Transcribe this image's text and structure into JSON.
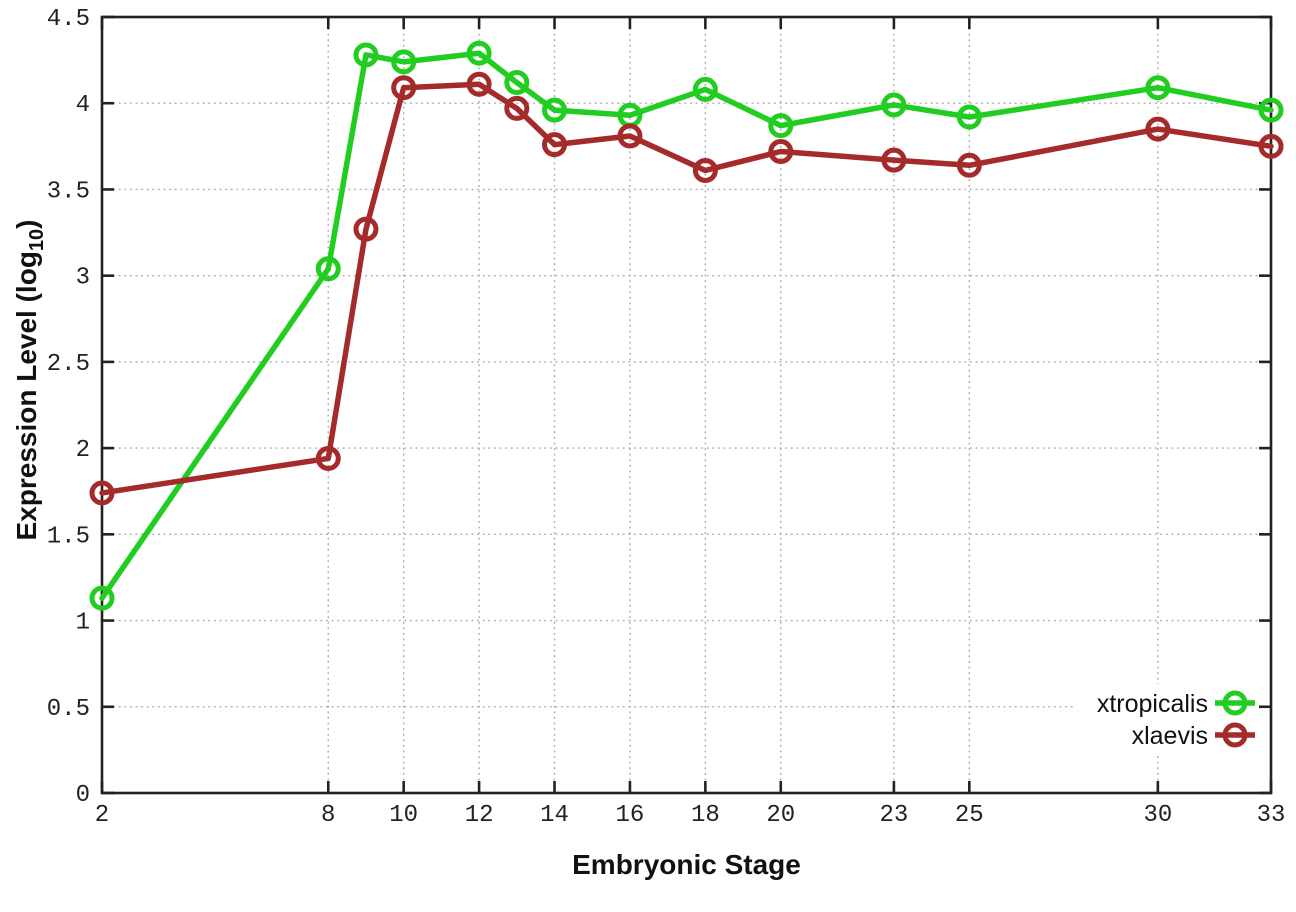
{
  "chart_data": {
    "type": "line",
    "title": "",
    "xlabel": "Embryonic Stage",
    "ylabel_parts": {
      "prefix": "Expression Level (log",
      "sub": "10",
      "suffix": ")"
    },
    "x": [
      2,
      8,
      9,
      10,
      12,
      13,
      14,
      16,
      18,
      20,
      23,
      25,
      30,
      33
    ],
    "series": [
      {
        "name": "xtropicalis",
        "color": "#21CD21",
        "values": [
          1.13,
          3.04,
          4.28,
          4.24,
          4.29,
          4.12,
          3.96,
          3.93,
          4.08,
          3.87,
          3.99,
          3.92,
          4.09,
          3.96
        ]
      },
      {
        "name": "xlaevis",
        "color": "#A52A2A",
        "values": [
          1.74,
          1.94,
          3.27,
          4.09,
          4.11,
          3.97,
          3.76,
          3.81,
          3.61,
          3.72,
          3.67,
          3.64,
          3.85,
          3.75
        ]
      }
    ],
    "xtick_labels": [
      "2",
      "8",
      "10",
      "12",
      "14",
      "16",
      "18",
      "20",
      "23",
      "25",
      "30",
      "33"
    ],
    "ytick_labels": [
      "0",
      "0.5",
      "1",
      "1.5",
      "2",
      "2.5",
      "3",
      "3.5",
      "4",
      "4.5"
    ],
    "xlim": [
      2,
      33
    ],
    "ylim": [
      0,
      4.5
    ],
    "grid": true,
    "legend_position": "inside-bottom-right",
    "legend_entries": [
      "xtropicalis",
      "xlaevis"
    ],
    "colors": {
      "grid": "#a8a8a8",
      "axis": "#222222",
      "background": "#ffffff"
    }
  }
}
